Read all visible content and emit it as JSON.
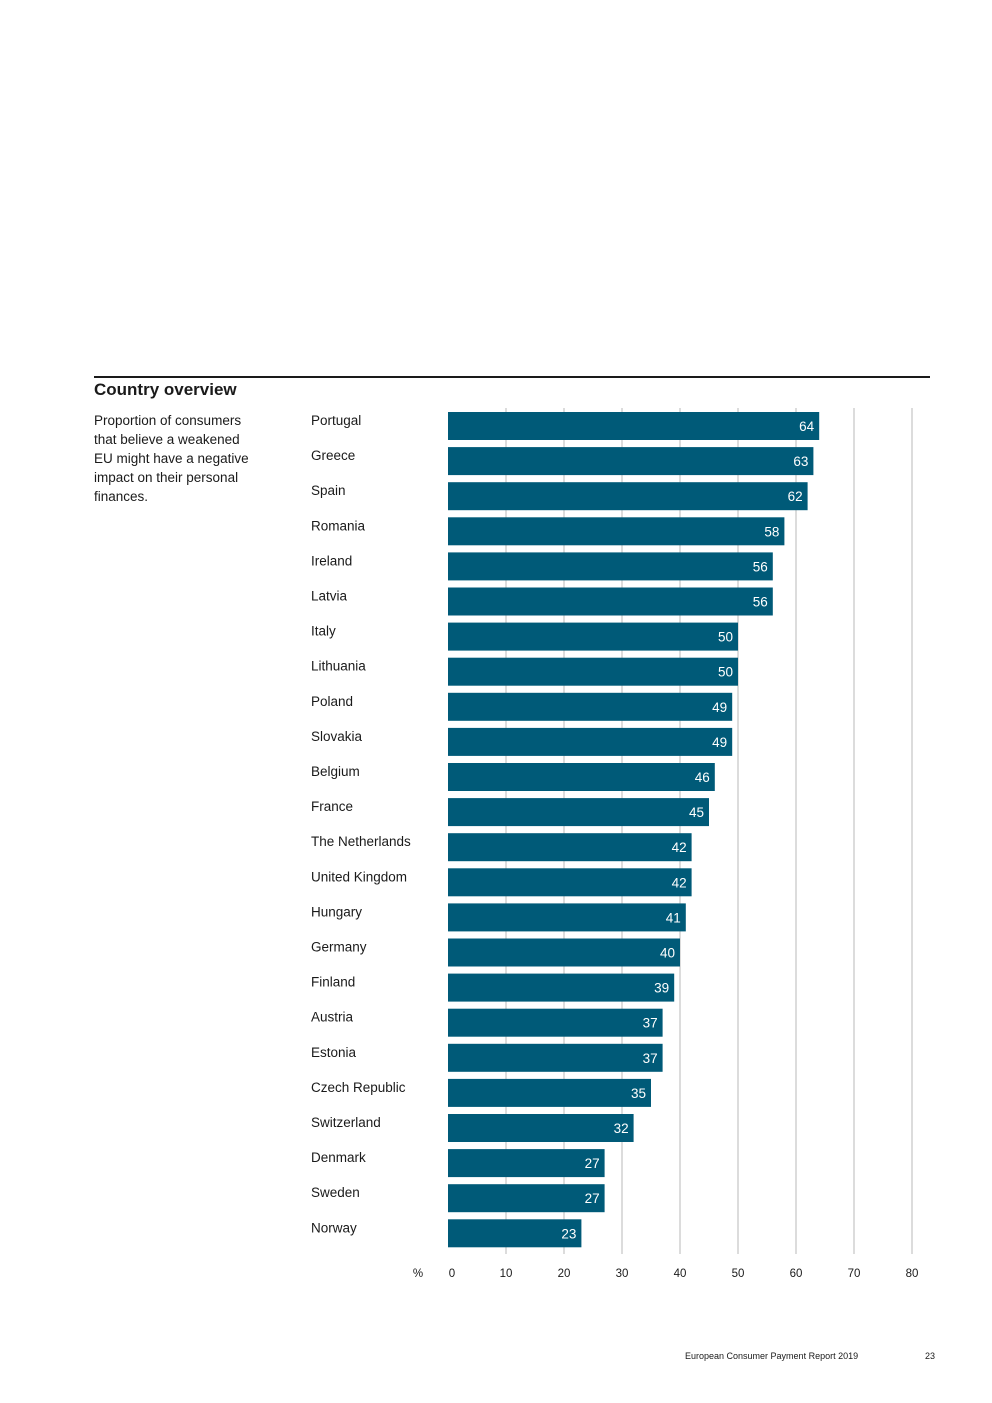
{
  "section": {
    "title": "Country overview",
    "description": "Proportion of consumers that believe a weakened EU might have a negative impact on their personal finances."
  },
  "footer": {
    "report_title": "European Consumer Payment Report 2019",
    "page_number": "23"
  },
  "colors": {
    "bar": "#005a78",
    "bar_label": "#ffffff",
    "grid": "#b8b8b8"
  },
  "chart_data": {
    "type": "bar",
    "orientation": "horizontal",
    "title": "",
    "xlabel": "%",
    "ylabel": "",
    "xlim": [
      0,
      80
    ],
    "grid": true,
    "x_ticks": [
      0,
      10,
      20,
      30,
      40,
      50,
      60,
      70,
      80
    ],
    "categories": [
      "Portugal",
      "Greece",
      "Spain",
      "Romania",
      "Ireland",
      "Latvia",
      "Italy",
      "Lithuania",
      "Poland",
      "Slovakia",
      "Belgium",
      "France",
      "The Netherlands",
      "United Kingdom",
      "Hungary",
      "Germany",
      "Finland",
      "Austria",
      "Estonia",
      "Czech Republic",
      "Switzerland",
      "Denmark",
      "Sweden",
      "Norway"
    ],
    "values": [
      64,
      63,
      62,
      58,
      56,
      56,
      50,
      50,
      49,
      49,
      46,
      45,
      42,
      42,
      41,
      40,
      39,
      37,
      37,
      35,
      32,
      27,
      27,
      23
    ]
  }
}
